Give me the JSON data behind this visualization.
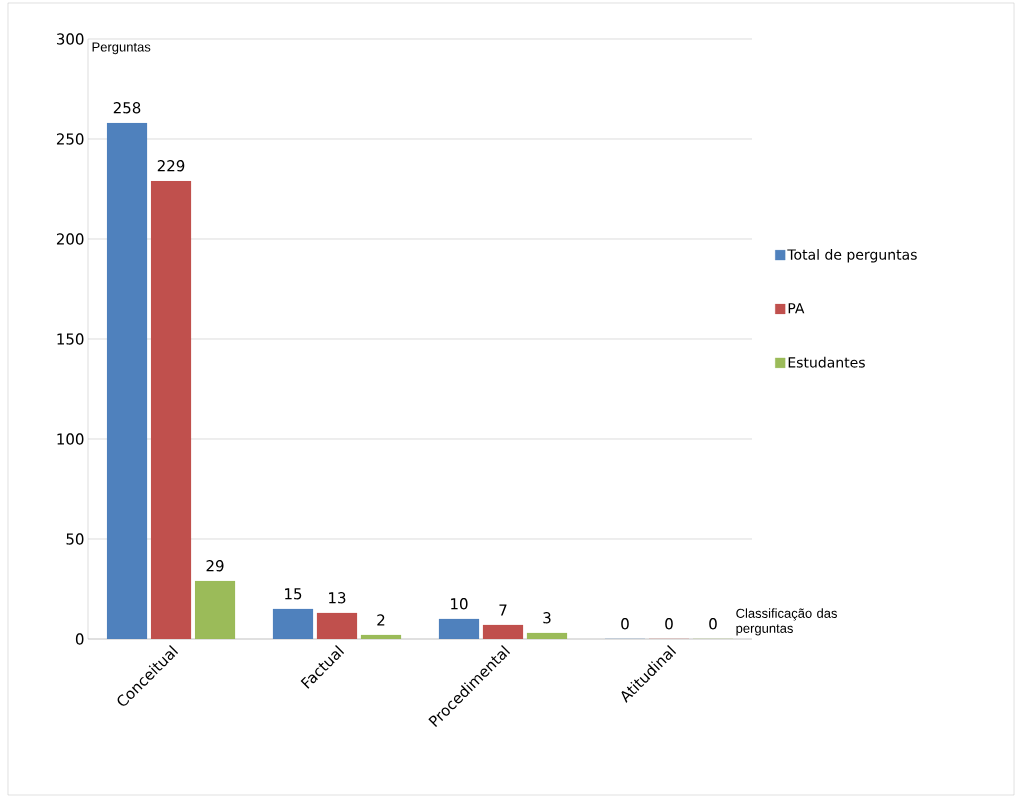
{
  "chart_data": {
    "type": "bar",
    "xlabel": "Classificação das perguntas",
    "ylabel": "Perguntas",
    "categories": [
      "Conceitual",
      "Factual",
      "Procedimental",
      "Atitudinal"
    ],
    "series": [
      {
        "name": "Total de perguntas",
        "color": "#4f81bd",
        "values": [
          258,
          15,
          10,
          0
        ]
      },
      {
        "name": "PA",
        "color": "#c0504d",
        "values": [
          229,
          13,
          7,
          0
        ]
      },
      {
        "name": "Estudantes",
        "color": "#9bbb59",
        "values": [
          29,
          2,
          3,
          0
        ]
      }
    ],
    "ylim": [
      0,
      300
    ],
    "yticks": [
      0,
      50,
      100,
      150,
      200,
      250,
      300
    ],
    "grid": "y",
    "legend": "right",
    "data_labels": true
  }
}
